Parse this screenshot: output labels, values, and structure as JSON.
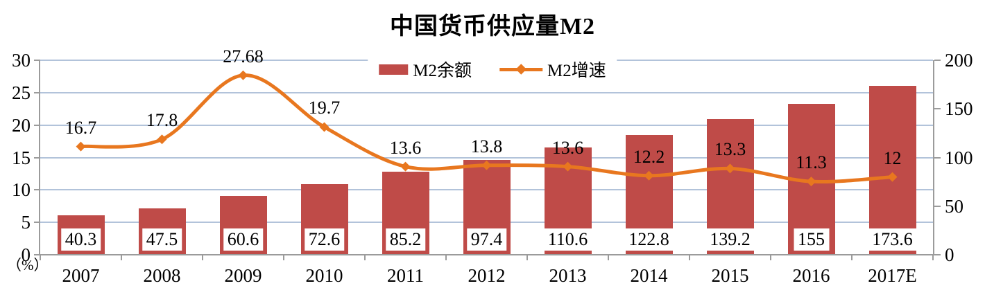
{
  "title": "中国货币供应量M2",
  "axis_unit_label": "（%）",
  "legend": [
    {
      "label": "M2余额",
      "type": "bar",
      "color": "#BF4B48"
    },
    {
      "label": "M2增速",
      "type": "line",
      "color": "#E8771F"
    }
  ],
  "colors": {
    "bar": "#BF4B48",
    "line": "#E8771F",
    "gridline": "#B2C3DA",
    "axis": "#9B9B9B",
    "text": "#000000",
    "background": "#FFFFFF"
  },
  "chart_data": {
    "type": "bar+line",
    "title": "中国货币供应量M2",
    "categories": [
      "2007",
      "2008",
      "2009",
      "2010",
      "2011",
      "2012",
      "2013",
      "2014",
      "2015",
      "2016",
      "2017E"
    ],
    "series": [
      {
        "name": "M2余额",
        "type": "bar",
        "axis": "right",
        "color": "#BF4B48",
        "values": [
          40.3,
          47.5,
          60.6,
          72.6,
          85.2,
          97.4,
          110.6,
          122.8,
          139.2,
          155,
          173.6
        ],
        "labels": [
          "40.3",
          "47.5",
          "60.6",
          "72.6",
          "85.2",
          "97.4",
          "110.6",
          "122.8",
          "139.2",
          "155",
          "173.6"
        ]
      },
      {
        "name": "M2增速",
        "type": "line",
        "axis": "left",
        "color": "#E8771F",
        "values": [
          16.7,
          17.8,
          27.68,
          19.7,
          13.6,
          13.8,
          13.6,
          12.2,
          13.3,
          11.3,
          12
        ],
        "labels": [
          "16.7",
          "17.8",
          "27.68",
          "19.7",
          "13.6",
          "13.8",
          "13.6",
          "12.2",
          "13.3",
          "11.3",
          "12"
        ]
      }
    ],
    "left_axis": {
      "range": [
        0,
        30
      ],
      "ticks": [
        0,
        5,
        10,
        15,
        20,
        25,
        30
      ],
      "unit": "（%）"
    },
    "right_axis": {
      "range": [
        0,
        200
      ],
      "ticks": [
        0,
        50,
        100,
        150,
        200
      ]
    },
    "grid": true,
    "legend_position": "top-center",
    "smoothed_line": true
  }
}
